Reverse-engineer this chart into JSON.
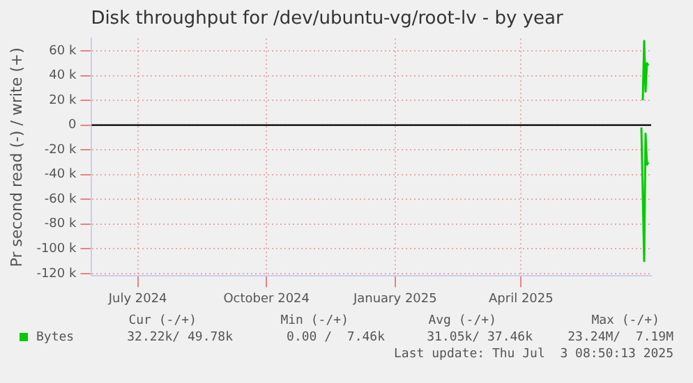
{
  "chart_data": {
    "type": "line",
    "title": "Disk throughput for /dev/ubuntu-vg/root-lv - by year",
    "ylabel": "Pr second read (-) / write (+)",
    "series": [
      {
        "name": "Bytes",
        "color": "#00cc00",
        "x": [
          "2025-06-27",
          "2025-06-28",
          "2025-06-29",
          "2025-06-30",
          "2025-07-01"
        ],
        "values": [
          20000,
          68000,
          27000,
          50000,
          48000
        ]
      },
      {
        "color": "#00cc00",
        "x": [
          "2025-06-26",
          "2025-06-28",
          "2025-06-29",
          "2025-06-30",
          "2025-07-01"
        ],
        "values": [
          -2000,
          -110000,
          -7000,
          -32000,
          -30000
        ]
      }
    ],
    "xlim": [
      "2024-05-29",
      "2025-07-03"
    ],
    "xticks": [
      {
        "value": "2024-07-01",
        "label": "July 2024"
      },
      {
        "value": "2024-10-01",
        "label": "October 2024"
      },
      {
        "value": "2025-01-01",
        "label": "January 2025"
      },
      {
        "value": "2025-04-01",
        "label": "April 2025"
      }
    ],
    "ylim": [
      -122000,
      70000
    ],
    "yticks": [
      {
        "value": -120000,
        "label": "-120 k"
      },
      {
        "value": -100000,
        "label": "-100 k"
      },
      {
        "value": -80000,
        "label": "-80 k"
      },
      {
        "value": -60000,
        "label": "-60 k"
      },
      {
        "value": -40000,
        "label": "-40 k"
      },
      {
        "value": -20000,
        "label": "-20 k"
      },
      0,
      {
        "value": 20000,
        "label": "20 k"
      },
      {
        "value": 40000,
        "label": "40 k"
      },
      {
        "value": 60000,
        "label": "60 k"
      }
    ],
    "ref_lines": [
      {
        "axis": "y",
        "value": 0,
        "color": "#000000"
      }
    ],
    "grid": true,
    "legend": "bottom left",
    "marker": "none",
    "line_style": "solid",
    "annotations": [
      "Cur (-/+)",
      "Min (-/+)",
      "Avg (-/+)",
      "Max (-/+)",
      "32.22k/ 49.78k",
      "0.00 /  7.46k",
      "31.05k/ 37.46k",
      "23.24M/  7.19M",
      "Last update: Thu Jul  3 08:50:13 2025"
    ]
  }
}
